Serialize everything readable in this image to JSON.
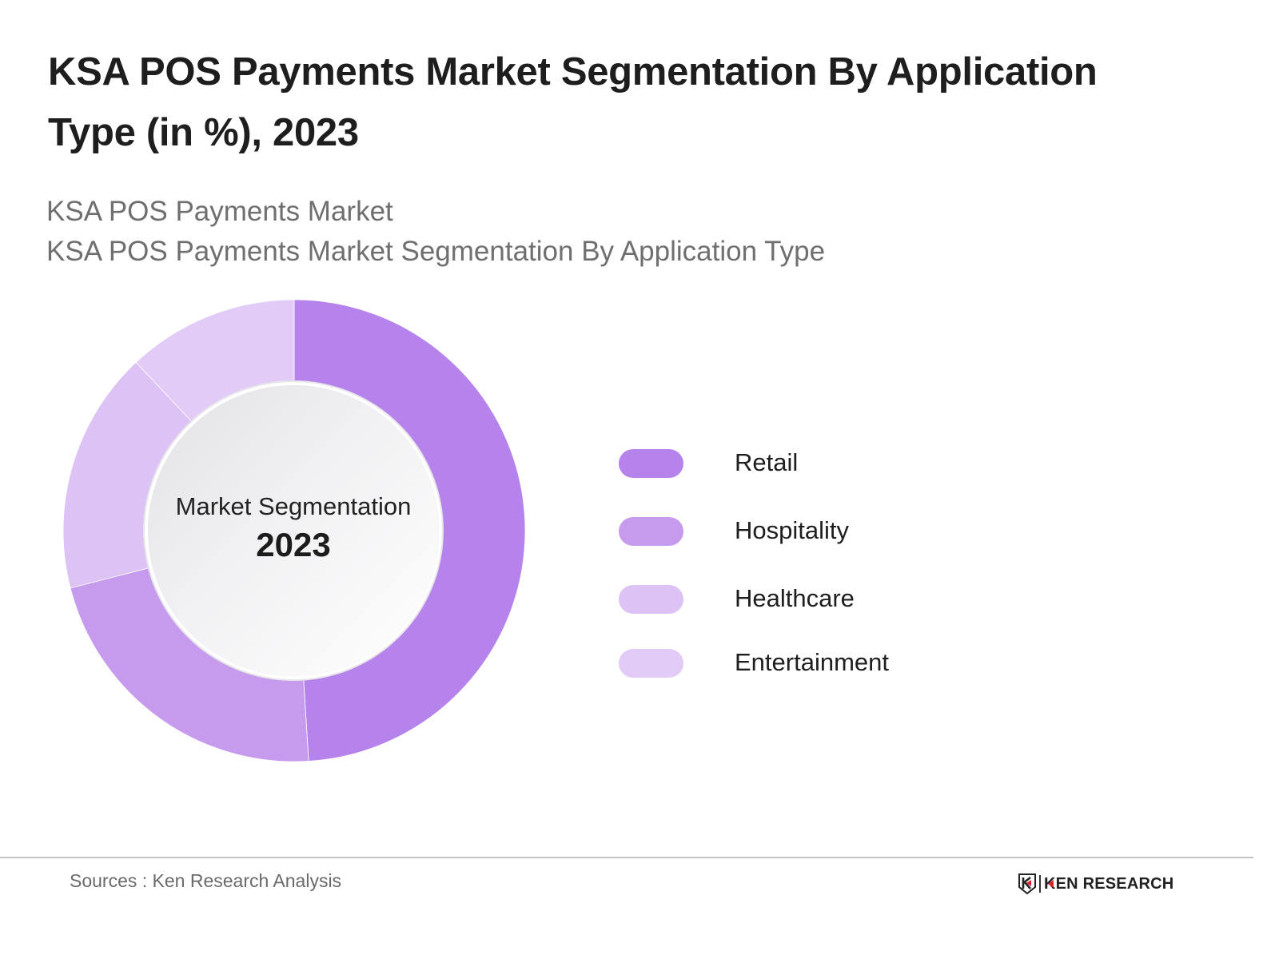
{
  "header": {
    "title": "KSA POS Payments Market Segmentation By Application Type (in %), 2023",
    "subtitle_lines": [
      "KSA POS Payments Market",
      "KSA POS Payments Market Segmentation By Application Type"
    ]
  },
  "donut_center": {
    "label": "Market Segmentation",
    "year": "2023"
  },
  "legend": {
    "items": [
      {
        "label": "Retail",
        "color": "#B583EB"
      },
      {
        "label": "Hospitality",
        "color": "#C69BEE"
      },
      {
        "label": "Healthcare",
        "color": "#DCC2F5"
      },
      {
        "label": "Entertainment",
        "color": "#E2CCF7"
      }
    ]
  },
  "footer": {
    "source": "Sources : Ken Research Analysis",
    "logo_text": "KEN RESEARCH",
    "logo_accent": "#D9262B"
  },
  "chart_data": {
    "type": "pie",
    "subtype": "donut",
    "title": "KSA POS Payments Market Segmentation By Application Type (in %), 2023",
    "subtitle": "KSA POS Payments Market / KSA POS Payments Market Segmentation By Application Type",
    "center_text": "Market Segmentation 2023",
    "unit": "%",
    "categories": [
      "Retail",
      "Hospitality",
      "Healthcare",
      "Entertainment"
    ],
    "values": [
      49,
      22,
      17,
      12
    ],
    "colors": [
      "#B583EB",
      "#C69BEE",
      "#DCC2F5",
      "#E2CCF7"
    ],
    "start_angle_deg": 0,
    "direction": "clockwise",
    "data_labels_shown": false,
    "legend_position": "right",
    "source": "Sources : Ken Research Analysis"
  }
}
